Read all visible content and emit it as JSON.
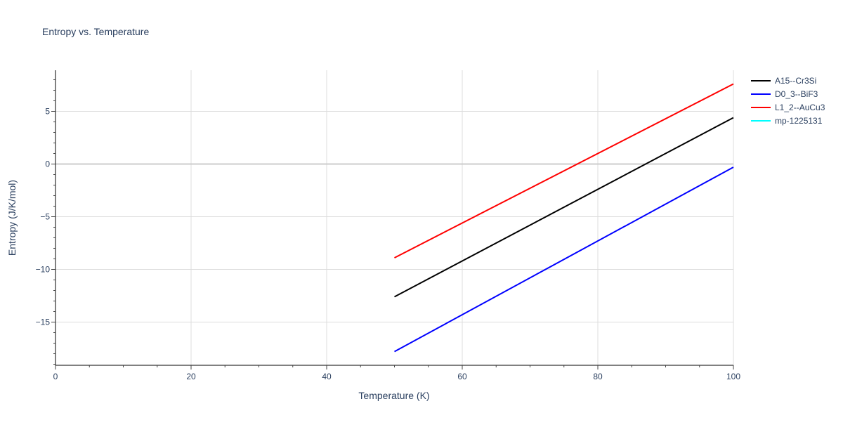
{
  "chart_data": {
    "type": "line",
    "title": "Entropy vs. Temperature",
    "xlabel": "Temperature (K)",
    "ylabel": "Entropy (J/K/mol)",
    "xlim": [
      0,
      100
    ],
    "ylim": [
      -19.1,
      8.9
    ],
    "x_ticks": [
      0,
      20,
      40,
      60,
      80,
      100
    ],
    "x_tick_labels": [
      "0",
      "20",
      "40",
      "60",
      "80",
      "100"
    ],
    "y_ticks": [
      -15,
      -10,
      -5,
      0,
      5
    ],
    "y_tick_labels": [
      "−15",
      "−10",
      "−5",
      "0",
      "5"
    ],
    "grid": true,
    "legend_position": "top-right",
    "series": [
      {
        "name": "A15--Cr3Si",
        "color": "#000000",
        "x": [
          50,
          100
        ],
        "y": [
          -12.6,
          4.4
        ]
      },
      {
        "name": "D0_3--BiF3",
        "color": "#0000ff",
        "x": [
          50,
          100
        ],
        "y": [
          -17.8,
          -0.3
        ]
      },
      {
        "name": "L1_2--AuCu3",
        "color": "#ff0000",
        "x": [
          50,
          100
        ],
        "y": [
          -8.9,
          7.6
        ]
      },
      {
        "name": "mp-1225131",
        "color": "#00ffff",
        "x": [],
        "y": []
      }
    ]
  }
}
